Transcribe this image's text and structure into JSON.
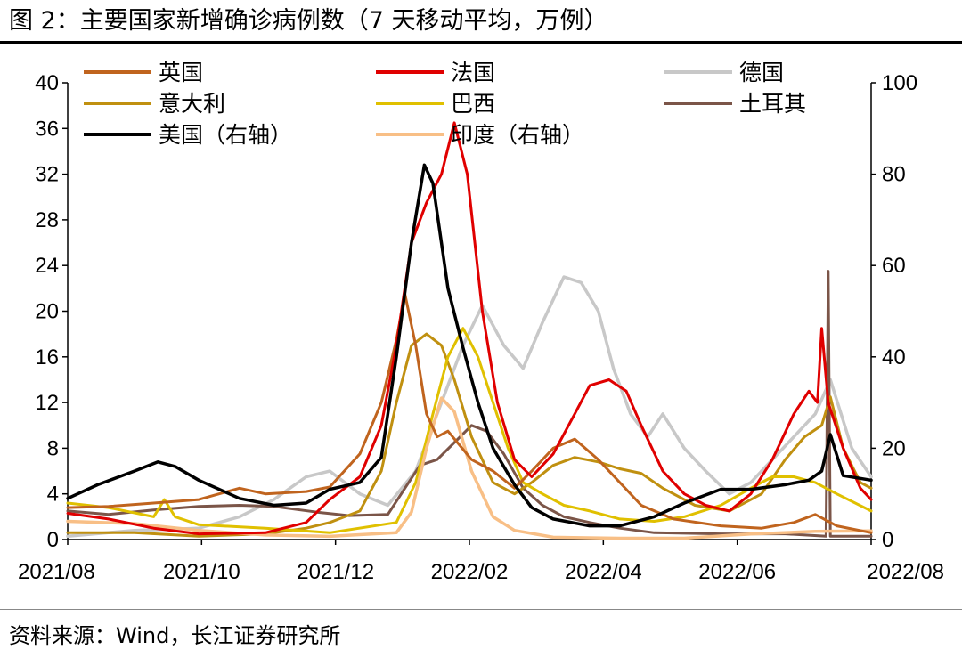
{
  "figure_title": "图 2：主要国家新增确诊病例数（7 天移动平均，万例）",
  "source": "资料来源：Wind，长江证券研究所",
  "chart_data": {
    "type": "line",
    "title": "主要国家新增确诊病例数（7 天移动平均，万例）",
    "x_tick_labels": [
      "2021/08",
      "2021/10",
      "2021/12",
      "2022/02",
      "2022/04",
      "2022/06",
      "2022/08"
    ],
    "x_range": [
      "2021-08-01",
      "2022-08-10"
    ],
    "y_left": {
      "range": [
        0,
        40
      ],
      "ticks": [
        "0",
        "4",
        "8",
        "12",
        "16",
        "20",
        "24",
        "28",
        "32",
        "36",
        "40"
      ]
    },
    "y_right": {
      "range": [
        0,
        100
      ],
      "ticks": [
        "0",
        "20",
        "40",
        "60",
        "80",
        "100"
      ]
    },
    "grid": false,
    "legend_position": "top",
    "series": [
      {
        "name": "英国",
        "color": "#C0641E",
        "axis": "left",
        "points": [
          [
            "2021-08-01",
            2.8
          ],
          [
            "2021-08-20",
            2.9
          ],
          [
            "2021-09-10",
            3.2
          ],
          [
            "2021-10-01",
            3.5
          ],
          [
            "2021-10-20",
            4.5
          ],
          [
            "2021-11-01",
            4.0
          ],
          [
            "2021-11-20",
            4.2
          ],
          [
            "2021-12-01",
            4.6
          ],
          [
            "2021-12-15",
            7.5
          ],
          [
            "2021-12-25",
            12
          ],
          [
            "2022-01-01",
            17.5
          ],
          [
            "2022-01-05",
            21.5
          ],
          [
            "2022-01-10",
            17
          ],
          [
            "2022-01-15",
            11
          ],
          [
            "2022-01-20",
            9
          ],
          [
            "2022-01-25",
            9.5
          ],
          [
            "2022-02-05",
            7
          ],
          [
            "2022-02-15",
            6
          ],
          [
            "2022-02-25",
            4.5
          ],
          [
            "2022-03-05",
            6
          ],
          [
            "2022-03-15",
            8
          ],
          [
            "2022-03-25",
            8.8
          ],
          [
            "2022-04-05",
            7
          ],
          [
            "2022-04-15",
            5
          ],
          [
            "2022-04-25",
            3
          ],
          [
            "2022-05-10",
            1.8
          ],
          [
            "2022-06-01",
            1.2
          ],
          [
            "2022-06-20",
            1.0
          ],
          [
            "2022-07-05",
            1.5
          ],
          [
            "2022-07-15",
            2.2
          ],
          [
            "2022-07-25",
            1.2
          ],
          [
            "2022-08-10",
            0.6
          ]
        ]
      },
      {
        "name": "法国",
        "color": "#E00000",
        "axis": "left",
        "points": [
          [
            "2021-08-01",
            2.3
          ],
          [
            "2021-08-20",
            1.8
          ],
          [
            "2021-09-10",
            1.0
          ],
          [
            "2021-10-01",
            0.5
          ],
          [
            "2021-11-01",
            0.6
          ],
          [
            "2021-11-20",
            1.5
          ],
          [
            "2021-12-01",
            3.5
          ],
          [
            "2021-12-15",
            5.5
          ],
          [
            "2021-12-25",
            10
          ],
          [
            "2022-01-01",
            17
          ],
          [
            "2022-01-08",
            26
          ],
          [
            "2022-01-15",
            29.5
          ],
          [
            "2022-01-22",
            32
          ],
          [
            "2022-01-28",
            36.5
          ],
          [
            "2022-02-03",
            32
          ],
          [
            "2022-02-10",
            20
          ],
          [
            "2022-02-17",
            12
          ],
          [
            "2022-02-25",
            7
          ],
          [
            "2022-03-05",
            5.5
          ],
          [
            "2022-03-15",
            7.5
          ],
          [
            "2022-03-25",
            11
          ],
          [
            "2022-04-01",
            13.5
          ],
          [
            "2022-04-10",
            14
          ],
          [
            "2022-04-18",
            13
          ],
          [
            "2022-04-25",
            10
          ],
          [
            "2022-05-05",
            6
          ],
          [
            "2022-05-15",
            4
          ],
          [
            "2022-05-25",
            3
          ],
          [
            "2022-06-05",
            2.5
          ],
          [
            "2022-06-15",
            4
          ],
          [
            "2022-06-25",
            7
          ],
          [
            "2022-07-05",
            11
          ],
          [
            "2022-07-12",
            13
          ],
          [
            "2022-07-16",
            12
          ],
          [
            "2022-07-18",
            18.5
          ],
          [
            "2022-07-21",
            12
          ],
          [
            "2022-07-28",
            8
          ],
          [
            "2022-08-05",
            4.5
          ],
          [
            "2022-08-10",
            3.5
          ]
        ]
      },
      {
        "name": "德国",
        "color": "#C8C8C8",
        "axis": "left",
        "points": [
          [
            "2021-08-01",
            0.3
          ],
          [
            "2021-09-01",
            0.8
          ],
          [
            "2021-10-01",
            1.0
          ],
          [
            "2021-10-20",
            2.0
          ],
          [
            "2021-11-05",
            3.5
          ],
          [
            "2021-11-20",
            5.5
          ],
          [
            "2021-12-01",
            6.0
          ],
          [
            "2021-12-15",
            4.0
          ],
          [
            "2021-12-28",
            3.0
          ],
          [
            "2022-01-10",
            6
          ],
          [
            "2022-01-20",
            11
          ],
          [
            "2022-02-01",
            17
          ],
          [
            "2022-02-10",
            20.5
          ],
          [
            "2022-02-20",
            17
          ],
          [
            "2022-03-01",
            15
          ],
          [
            "2022-03-10",
            19
          ],
          [
            "2022-03-20",
            23
          ],
          [
            "2022-03-28",
            22.5
          ],
          [
            "2022-04-05",
            20
          ],
          [
            "2022-04-12",
            15
          ],
          [
            "2022-04-20",
            11
          ],
          [
            "2022-04-28",
            9
          ],
          [
            "2022-05-05",
            11
          ],
          [
            "2022-05-15",
            8
          ],
          [
            "2022-05-25",
            6
          ],
          [
            "2022-06-05",
            4
          ],
          [
            "2022-06-15",
            5
          ],
          [
            "2022-06-25",
            7
          ],
          [
            "2022-07-05",
            9
          ],
          [
            "2022-07-15",
            11
          ],
          [
            "2022-07-22",
            14
          ],
          [
            "2022-08-01",
            8
          ],
          [
            "2022-08-10",
            5.5
          ]
        ]
      },
      {
        "name": "意大利",
        "color": "#C09010",
        "axis": "left",
        "points": [
          [
            "2021-08-01",
            0.6
          ],
          [
            "2021-09-01",
            0.6
          ],
          [
            "2021-10-01",
            0.3
          ],
          [
            "2021-11-01",
            0.5
          ],
          [
            "2021-11-20",
            1.0
          ],
          [
            "2021-12-01",
            1.5
          ],
          [
            "2021-12-15",
            2.5
          ],
          [
            "2021-12-25",
            6
          ],
          [
            "2022-01-01",
            12
          ],
          [
            "2022-01-08",
            17
          ],
          [
            "2022-01-15",
            18
          ],
          [
            "2022-01-22",
            17
          ],
          [
            "2022-01-28",
            14
          ],
          [
            "2022-02-05",
            9
          ],
          [
            "2022-02-15",
            5
          ],
          [
            "2022-02-25",
            4
          ],
          [
            "2022-03-05",
            5
          ],
          [
            "2022-03-15",
            6.5
          ],
          [
            "2022-03-25",
            7.2
          ],
          [
            "2022-04-05",
            6.8
          ],
          [
            "2022-04-15",
            6.2
          ],
          [
            "2022-04-25",
            5.8
          ],
          [
            "2022-05-05",
            4.5
          ],
          [
            "2022-05-20",
            3
          ],
          [
            "2022-06-05",
            2.5
          ],
          [
            "2022-06-20",
            4
          ],
          [
            "2022-07-01",
            7
          ],
          [
            "2022-07-10",
            9
          ],
          [
            "2022-07-18",
            10
          ],
          [
            "2022-07-22",
            12.5
          ],
          [
            "2022-07-28",
            8
          ],
          [
            "2022-08-05",
            5
          ],
          [
            "2022-08-10",
            4.5
          ]
        ]
      },
      {
        "name": "巴西",
        "color": "#E0C000",
        "axis": "left",
        "points": [
          [
            "2021-08-01",
            3.2
          ],
          [
            "2021-08-20",
            2.8
          ],
          [
            "2021-09-10",
            2.0
          ],
          [
            "2021-09-15",
            3.5
          ],
          [
            "2021-09-20",
            2.0
          ],
          [
            "2021-10-01",
            1.3
          ],
          [
            "2021-11-01",
            1.0
          ],
          [
            "2021-12-01",
            0.6
          ],
          [
            "2022-01-01",
            1.5
          ],
          [
            "2022-01-10",
            5
          ],
          [
            "2022-01-18",
            11
          ],
          [
            "2022-01-25",
            16
          ],
          [
            "2022-02-01",
            18.5
          ],
          [
            "2022-02-08",
            16
          ],
          [
            "2022-02-15",
            12
          ],
          [
            "2022-02-22",
            8
          ],
          [
            "2022-03-01",
            5
          ],
          [
            "2022-03-10",
            4
          ],
          [
            "2022-03-20",
            3
          ],
          [
            "2022-04-01",
            2.5
          ],
          [
            "2022-04-15",
            1.8
          ],
          [
            "2022-05-01",
            1.6
          ],
          [
            "2022-05-15",
            2.0
          ],
          [
            "2022-06-01",
            3
          ],
          [
            "2022-06-15",
            4.5
          ],
          [
            "2022-06-25",
            5.5
          ],
          [
            "2022-07-05",
            5.5
          ],
          [
            "2022-07-15",
            5
          ],
          [
            "2022-07-25",
            4
          ],
          [
            "2022-08-10",
            2.5
          ]
        ]
      },
      {
        "name": "土耳其",
        "color": "#7B5548",
        "axis": "left",
        "points": [
          [
            "2021-08-01",
            2.5
          ],
          [
            "2021-08-20",
            2.2
          ],
          [
            "2021-09-10",
            2.6
          ],
          [
            "2021-10-01",
            2.9
          ],
          [
            "2021-10-20",
            3.0
          ],
          [
            "2021-11-05",
            2.9
          ],
          [
            "2021-11-25",
            2.4
          ],
          [
            "2021-12-10",
            2.1
          ],
          [
            "2021-12-28",
            2.2
          ],
          [
            "2022-01-05",
            4.5
          ],
          [
            "2022-01-12",
            6.5
          ],
          [
            "2022-01-20",
            7
          ],
          [
            "2022-01-28",
            8.5
          ],
          [
            "2022-02-05",
            10
          ],
          [
            "2022-02-12",
            9.5
          ],
          [
            "2022-02-20",
            7.5
          ],
          [
            "2022-03-01",
            4.5
          ],
          [
            "2022-03-10",
            3
          ],
          [
            "2022-03-20",
            2
          ],
          [
            "2022-04-01",
            1.5
          ],
          [
            "2022-04-15",
            1.0
          ],
          [
            "2022-05-01",
            0.6
          ],
          [
            "2022-06-01",
            0.5
          ],
          [
            "2022-07-01",
            0.5
          ],
          [
            "2022-07-20",
            0.3
          ],
          [
            "2022-07-21",
            23.5
          ],
          [
            "2022-07-22",
            0.3
          ],
          [
            "2022-08-10",
            0.3
          ]
        ]
      }
    ],
    "right_axis_series": [
      {
        "name": "美国（右轴）",
        "color": "#000000",
        "axis": "right",
        "points": [
          [
            "2021-08-01",
            9
          ],
          [
            "2021-08-15",
            12
          ],
          [
            "2021-09-01",
            15
          ],
          [
            "2021-09-12",
            17
          ],
          [
            "2021-09-20",
            16
          ],
          [
            "2021-10-01",
            13
          ],
          [
            "2021-10-20",
            9
          ],
          [
            "2021-11-05",
            7.5
          ],
          [
            "2021-11-20",
            8
          ],
          [
            "2021-12-01",
            11
          ],
          [
            "2021-12-15",
            12.5
          ],
          [
            "2021-12-25",
            18
          ],
          [
            "2022-01-01",
            40
          ],
          [
            "2022-01-08",
            65
          ],
          [
            "2022-01-14",
            82
          ],
          [
            "2022-01-18",
            78
          ],
          [
            "2022-01-25",
            55
          ],
          [
            "2022-02-01",
            42
          ],
          [
            "2022-02-08",
            30
          ],
          [
            "2022-02-15",
            20
          ],
          [
            "2022-02-25",
            12
          ],
          [
            "2022-03-05",
            7
          ],
          [
            "2022-03-15",
            4.5
          ],
          [
            "2022-04-01",
            3
          ],
          [
            "2022-04-15",
            3
          ],
          [
            "2022-05-01",
            5
          ],
          [
            "2022-05-15",
            8
          ],
          [
            "2022-06-01",
            11
          ],
          [
            "2022-06-15",
            11
          ],
          [
            "2022-07-01",
            12
          ],
          [
            "2022-07-12",
            13
          ],
          [
            "2022-07-18",
            15
          ],
          [
            "2022-07-22",
            23
          ],
          [
            "2022-07-28",
            14
          ],
          [
            "2022-08-10",
            13
          ]
        ]
      },
      {
        "name": "印度（右轴）",
        "color": "#F8BF86",
        "axis": "right",
        "points": [
          [
            "2021-08-01",
            4
          ],
          [
            "2021-09-01",
            3.5
          ],
          [
            "2021-10-01",
            2
          ],
          [
            "2021-11-01",
            1
          ],
          [
            "2021-12-01",
            0.7
          ],
          [
            "2022-01-01",
            1.5
          ],
          [
            "2022-01-08",
            6
          ],
          [
            "2022-01-15",
            20
          ],
          [
            "2022-01-22",
            31
          ],
          [
            "2022-01-28",
            28
          ],
          [
            "2022-02-05",
            15
          ],
          [
            "2022-02-15",
            5
          ],
          [
            "2022-02-25",
            2
          ],
          [
            "2022-03-15",
            0.5
          ],
          [
            "2022-04-15",
            0.3
          ],
          [
            "2022-05-15",
            0.3
          ],
          [
            "2022-06-15",
            1.2
          ],
          [
            "2022-07-15",
            1.8
          ],
          [
            "2022-08-10",
            1.9
          ]
        ]
      }
    ]
  }
}
